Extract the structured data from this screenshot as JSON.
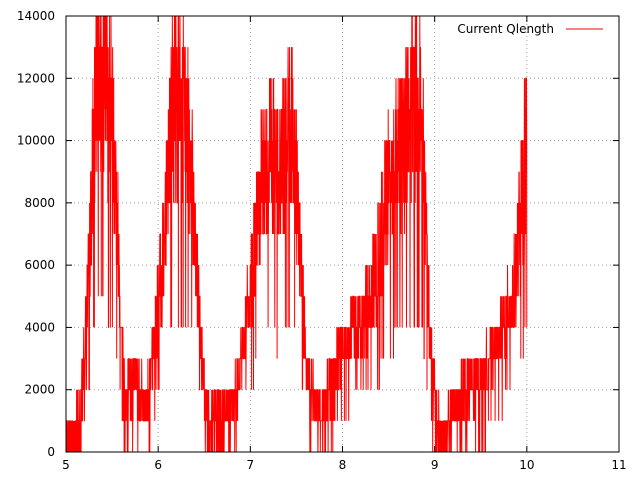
{
  "chart_data": {
    "type": "line",
    "title": "",
    "xlabel": "",
    "ylabel": "",
    "xlim": [
      5,
      11
    ],
    "ylim": [
      0,
      14000
    ],
    "x_ticks": [
      "5",
      "6",
      "7",
      "8",
      "9",
      "10",
      "11"
    ],
    "y_ticks": [
      "0",
      "2000",
      "4000",
      "6000",
      "8000",
      "10000",
      "12000",
      "14000"
    ],
    "grid": true,
    "legend_position": "top-right",
    "line_color": "#ff0000",
    "series": [
      {
        "name": "Current Qlength",
        "x": [
          5.0,
          5.05,
          5.1,
          5.15,
          5.2,
          5.25,
          5.3,
          5.35,
          5.4,
          5.45,
          5.5,
          5.55,
          5.6,
          5.65,
          5.7,
          5.75,
          5.8,
          5.85,
          5.9,
          5.95,
          6.0,
          6.05,
          6.1,
          6.15,
          6.2,
          6.25,
          6.3,
          6.35,
          6.4,
          6.45,
          6.5,
          6.55,
          6.6,
          6.65,
          6.7,
          6.75,
          6.8,
          6.85,
          6.9,
          6.95,
          7.0,
          7.05,
          7.1,
          7.15,
          7.2,
          7.25,
          7.3,
          7.35,
          7.4,
          7.45,
          7.5,
          7.55,
          7.6,
          7.65,
          7.7,
          7.75,
          7.8,
          7.85,
          7.9,
          7.95,
          8.0,
          8.05,
          8.1,
          8.15,
          8.2,
          8.25,
          8.3,
          8.35,
          8.4,
          8.45,
          8.5,
          8.55,
          8.6,
          8.65,
          8.7,
          8.75,
          8.8,
          8.85,
          8.9,
          8.95,
          9.0,
          9.05,
          9.1,
          9.15,
          9.2,
          9.25,
          9.3,
          9.35,
          9.4,
          9.45,
          9.5,
          9.55,
          9.6,
          9.65,
          9.7,
          9.75,
          9.8,
          9.85,
          9.9,
          9.95,
          10.0
        ],
        "y": [
          500,
          500,
          500,
          1000,
          3000,
          6000,
          10000,
          12500,
          12000,
          11500,
          11000,
          8000,
          4000,
          1500,
          2000,
          2500,
          2000,
          1500,
          2000,
          3000,
          5000,
          6000,
          9000,
          11000,
          11500,
          11000,
          10500,
          10000,
          7000,
          4000,
          2000,
          1000,
          1000,
          1000,
          1000,
          1000,
          1500,
          2000,
          3000,
          4000,
          5000,
          6500,
          8000,
          9000,
          9500,
          9500,
          9000,
          9500,
          10000,
          10500,
          9000,
          6000,
          3000,
          2000,
          1500,
          1500,
          1500,
          2000,
          2000,
          3000,
          3500,
          3500,
          4000,
          4000,
          4000,
          4500,
          5000,
          5500,
          6500,
          7500,
          8500,
          9000,
          9500,
          10000,
          10500,
          11000,
          11500,
          11500,
          8000,
          3500,
          1500,
          500,
          500,
          1000,
          1500,
          1500,
          2000,
          2000,
          2000,
          2500,
          2500,
          2500,
          3000,
          3500,
          3500,
          4000,
          4500,
          5000,
          6500,
          8000,
          10500
        ]
      }
    ]
  }
}
